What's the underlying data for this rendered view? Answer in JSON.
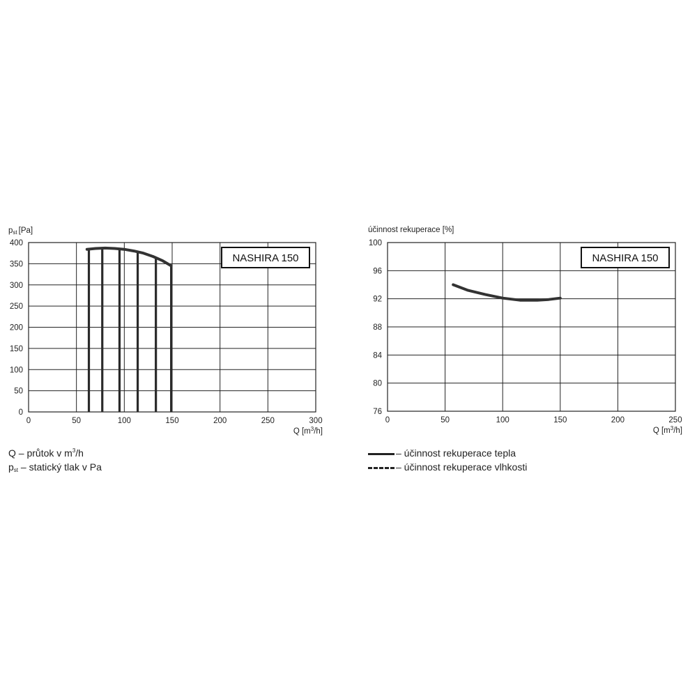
{
  "chart_data": [
    {
      "type": "line",
      "ylabel": "p",
      "ylabel_sub": "st",
      "ylabel_unit": "[Pa]",
      "xlabel": "Q",
      "xlabel_unit_pre": "[m",
      "xlabel_unit_sup": "3",
      "xlabel_unit_post": "/h]",
      "xlim": [
        0,
        300
      ],
      "ylim": [
        0,
        400
      ],
      "x_ticks": [
        0,
        50,
        100,
        150,
        200,
        250,
        300
      ],
      "y_ticks": [
        0,
        50,
        100,
        150,
        200,
        250,
        300,
        350,
        400
      ],
      "grid": true,
      "badge": "NASHIRA 150",
      "series": [
        {
          "style": "solid",
          "color": "#333333",
          "x": [
            61,
            70,
            80,
            90,
            100,
            110,
            120,
            130,
            140,
            149
          ],
          "y": [
            384,
            386,
            387,
            386,
            384,
            380,
            375,
            367,
            357,
            345
          ]
        }
      ],
      "vertical_lines": [
        63,
        77,
        95,
        114,
        133,
        149
      ]
    },
    {
      "type": "line",
      "ylabel": "účinnost rekuperace [%]",
      "xlabel": "Q",
      "xlabel_unit_pre": "[m",
      "xlabel_unit_sup": "3",
      "xlabel_unit_post": "/h]",
      "xlim": [
        0,
        250
      ],
      "ylim": [
        76,
        100
      ],
      "x_ticks": [
        0,
        50,
        100,
        150,
        200,
        250
      ],
      "y_ticks": [
        76,
        80,
        84,
        88,
        92,
        96,
        100
      ],
      "grid": true,
      "badge": "NASHIRA 150",
      "series": [
        {
          "style": "solid",
          "color": "#333333",
          "x": [
            57,
            70,
            85,
            100,
            115,
            130,
            140,
            150
          ],
          "y": [
            94.0,
            93.2,
            92.6,
            92.1,
            91.8,
            91.8,
            91.9,
            92.1
          ]
        }
      ]
    }
  ],
  "notes": {
    "q_symbol": "Q",
    "q_text_pre": " – průtok v m",
    "q_text_sup": "3",
    "q_text_post": "/h",
    "p_symbol": "p",
    "p_sub": "st",
    "p_text": " – statický tlak v Pa"
  },
  "legend": {
    "heat_label": "– účinnost rekuperace tepla",
    "humidity_label": "– účinnost rekuperace vlhkosti"
  }
}
